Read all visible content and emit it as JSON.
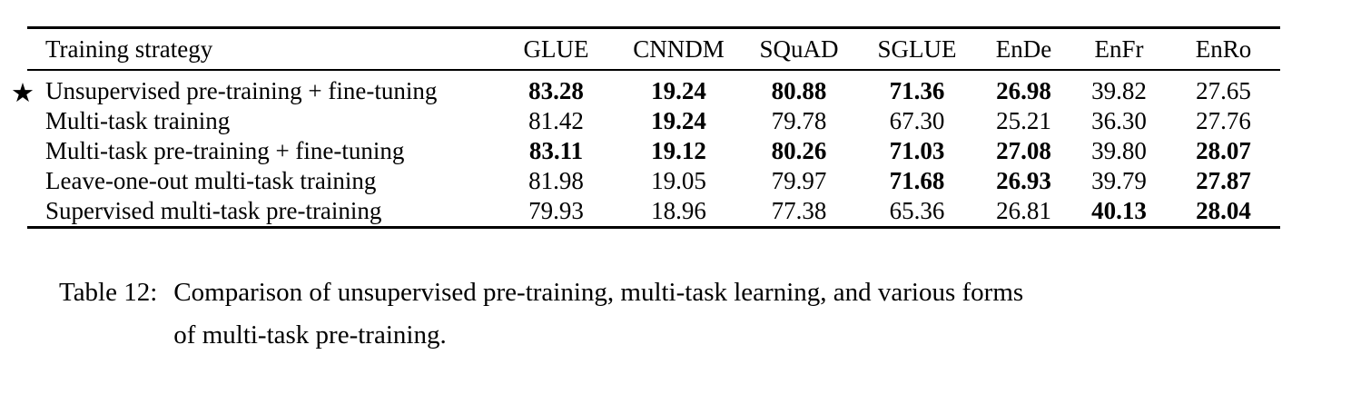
{
  "table": {
    "columns": [
      "Training strategy",
      "GLUE",
      "CNNDM",
      "SQuAD",
      "SGLUE",
      "EnDe",
      "EnFr",
      "EnRo"
    ],
    "star_icon": "★",
    "rows": [
      {
        "starred": true,
        "strategy": "Unsupervised pre-training + fine-tuning",
        "values": [
          "83.28",
          "19.24",
          "80.88",
          "71.36",
          "26.98",
          "39.82",
          "27.65"
        ],
        "bold": [
          true,
          true,
          true,
          true,
          true,
          false,
          false
        ]
      },
      {
        "starred": false,
        "strategy": "Multi-task training",
        "values": [
          "81.42",
          "19.24",
          "79.78",
          "67.30",
          "25.21",
          "36.30",
          "27.76"
        ],
        "bold": [
          false,
          true,
          false,
          false,
          false,
          false,
          false
        ]
      },
      {
        "starred": false,
        "strategy": "Multi-task pre-training + fine-tuning",
        "values": [
          "83.11",
          "19.12",
          "80.26",
          "71.03",
          "27.08",
          "39.80",
          "28.07"
        ],
        "bold": [
          true,
          true,
          true,
          true,
          true,
          false,
          true
        ]
      },
      {
        "starred": false,
        "strategy": "Leave-one-out multi-task training",
        "values": [
          "81.98",
          "19.05",
          "79.97",
          "71.68",
          "26.93",
          "39.79",
          "27.87"
        ],
        "bold": [
          false,
          false,
          false,
          true,
          true,
          false,
          true
        ]
      },
      {
        "starred": false,
        "strategy": "Supervised multi-task pre-training",
        "values": [
          "79.93",
          "18.96",
          "77.38",
          "65.36",
          "26.81",
          "40.13",
          "28.04"
        ],
        "bold": [
          false,
          false,
          false,
          false,
          false,
          true,
          true
        ]
      }
    ]
  },
  "caption": {
    "label": "Table 12:",
    "lines": [
      "Comparison of unsupervised pre-training, multi-task learning, and various forms",
      "of multi-task pre-training."
    ]
  }
}
